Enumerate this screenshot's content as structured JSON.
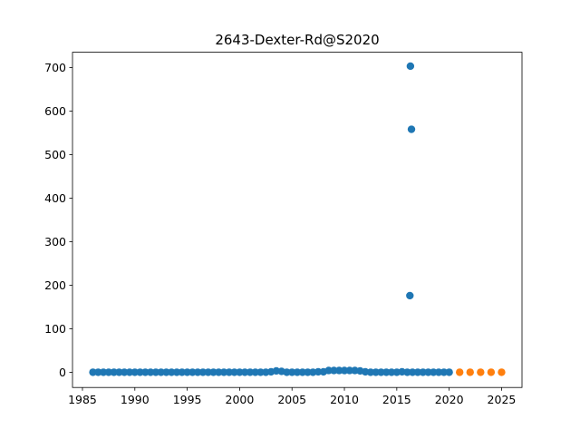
{
  "chart_data": {
    "type": "scatter",
    "title": "2643-Dexter-Rd@S2020",
    "series": [
      {
        "color": "#1f77b4",
        "x": [
          1986.0,
          1986.5,
          1987.0,
          1987.5,
          1988.0,
          1988.5,
          1989.0,
          1989.5,
          1990.0,
          1990.5,
          1991.0,
          1991.5,
          1992.0,
          1992.5,
          1993.0,
          1993.5,
          1994.0,
          1994.5,
          1995.0,
          1995.5,
          1996.0,
          1996.5,
          1997.0,
          1997.5,
          1998.0,
          1998.5,
          1999.0,
          1999.5,
          2000.0,
          2000.5,
          2001.0,
          2001.5,
          2002.0,
          2002.5,
          2003.0,
          2003.5,
          2004.0,
          2004.5,
          2005.0,
          2005.5,
          2006.0,
          2006.5,
          2007.0,
          2007.5,
          2008.0,
          2008.5,
          2009.0,
          2009.5,
          2010.0,
          2010.5,
          2011.0,
          2011.5,
          2012.0,
          2012.5,
          2013.0,
          2013.5,
          2014.0,
          2014.5,
          2015.0,
          2015.5,
          2016.0,
          2016.25,
          2016.3,
          2016.4,
          2016.5,
          2017.0,
          2017.5,
          2018.0,
          2018.5,
          2019.0,
          2019.5,
          2020.0
        ],
        "values": [
          0,
          0,
          0,
          0,
          0,
          0,
          0,
          0,
          0,
          0,
          0,
          0,
          0,
          0,
          0,
          0,
          0,
          0,
          0,
          0,
          0,
          0,
          0,
          0,
          0,
          0,
          0,
          0,
          0,
          0,
          0,
          0,
          0,
          0,
          1,
          3,
          2,
          0,
          0,
          0,
          0,
          0,
          0,
          1,
          1,
          4,
          4,
          4,
          4,
          4,
          4,
          3,
          1,
          0,
          0,
          0,
          0,
          0,
          0,
          1,
          0,
          176,
          703,
          558,
          0,
          0,
          0,
          0,
          0,
          0,
          0,
          0
        ]
      },
      {
        "color": "#ff7f0e",
        "x": [
          2021,
          2022,
          2023,
          2024,
          2025
        ],
        "values": [
          0,
          0,
          0,
          0,
          0
        ]
      }
    ],
    "xlim": [
      1984.05,
      2026.95
    ],
    "xticks": [
      1985,
      1990,
      1995,
      2000,
      2005,
      2010,
      2015,
      2020,
      2025
    ],
    "ylim": [
      -35,
      735
    ],
    "yticks": [
      0,
      100,
      200,
      300,
      400,
      500,
      600,
      700
    ]
  }
}
